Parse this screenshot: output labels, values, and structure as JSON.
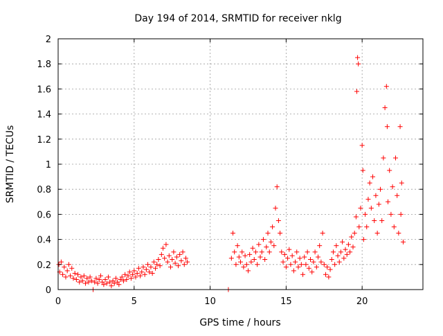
{
  "chart_data": {
    "type": "scatter",
    "title": "Day 194 of 2014, SRMTID for receiver nklg",
    "xlabel": "GPS time / hours",
    "ylabel": "SRMTID / TECUs",
    "xlim": [
      0,
      24
    ],
    "ylim": [
      0,
      2
    ],
    "xticks": [
      0,
      5,
      10,
      15,
      20
    ],
    "yticks": [
      0,
      0.2,
      0.4,
      0.6,
      0.8,
      1,
      1.2,
      1.4,
      1.6,
      1.8,
      2
    ],
    "grid": true,
    "marker": "+",
    "color": "#ff0000",
    "series": [
      {
        "name": "SRMTID",
        "points": [
          [
            0.05,
            0.2
          ],
          [
            0.1,
            0.14
          ],
          [
            0.2,
            0.22
          ],
          [
            0.3,
            0.12
          ],
          [
            0.4,
            0.18
          ],
          [
            0.5,
            0.1
          ],
          [
            0.6,
            0.15
          ],
          [
            0.7,
            0.2
          ],
          [
            0.8,
            0.11
          ],
          [
            0.9,
            0.17
          ],
          [
            1.0,
            0.09
          ],
          [
            1.1,
            0.13
          ],
          [
            1.2,
            0.08
          ],
          [
            1.3,
            0.12
          ],
          [
            1.4,
            0.06
          ],
          [
            1.5,
            0.1
          ],
          [
            1.6,
            0.07
          ],
          [
            1.7,
            0.11
          ],
          [
            1.8,
            0.05
          ],
          [
            1.9,
            0.09
          ],
          [
            2.0,
            0.06
          ],
          [
            2.1,
            0.1
          ],
          [
            2.2,
            0.07
          ],
          [
            2.3,
            0.0
          ],
          [
            2.4,
            0.06
          ],
          [
            2.5,
            0.09
          ],
          [
            2.6,
            0.05
          ],
          [
            2.7,
            0.08
          ],
          [
            2.8,
            0.11
          ],
          [
            2.9,
            0.06
          ],
          [
            3.0,
            0.04
          ],
          [
            3.1,
            0.08
          ],
          [
            3.2,
            0.05
          ],
          [
            3.3,
            0.1
          ],
          [
            3.4,
            0.06
          ],
          [
            3.5,
            0.03
          ],
          [
            3.6,
            0.07
          ],
          [
            3.7,
            0.05
          ],
          [
            3.8,
            0.09
          ],
          [
            3.9,
            0.06
          ],
          [
            4.0,
            0.04
          ],
          [
            4.1,
            0.08
          ],
          [
            4.2,
            0.1
          ],
          [
            4.3,
            0.07
          ],
          [
            4.4,
            0.12
          ],
          [
            4.5,
            0.08
          ],
          [
            4.6,
            0.11
          ],
          [
            4.7,
            0.14
          ],
          [
            4.8,
            0.09
          ],
          [
            4.9,
            0.12
          ],
          [
            5.0,
            0.15
          ],
          [
            5.1,
            0.1
          ],
          [
            5.2,
            0.13
          ],
          [
            5.3,
            0.17
          ],
          [
            5.4,
            0.11
          ],
          [
            5.5,
            0.14
          ],
          [
            5.6,
            0.18
          ],
          [
            5.7,
            0.12
          ],
          [
            5.8,
            0.16
          ],
          [
            5.9,
            0.2
          ],
          [
            6.0,
            0.14
          ],
          [
            6.1,
            0.18
          ],
          [
            6.2,
            0.13
          ],
          [
            6.3,
            0.22
          ],
          [
            6.4,
            0.17
          ],
          [
            6.5,
            0.2
          ],
          [
            6.6,
            0.24
          ],
          [
            6.7,
            0.19
          ],
          [
            6.8,
            0.28
          ],
          [
            6.9,
            0.33
          ],
          [
            7.0,
            0.25
          ],
          [
            7.1,
            0.36
          ],
          [
            7.2,
            0.22
          ],
          [
            7.3,
            0.27
          ],
          [
            7.4,
            0.18
          ],
          [
            7.5,
            0.24
          ],
          [
            7.6,
            0.3
          ],
          [
            7.7,
            0.21
          ],
          [
            7.8,
            0.26
          ],
          [
            7.9,
            0.19
          ],
          [
            8.0,
            0.28
          ],
          [
            8.1,
            0.23
          ],
          [
            8.2,
            0.3
          ],
          [
            8.3,
            0.2
          ],
          [
            8.4,
            0.25
          ],
          [
            8.5,
            0.22
          ],
          [
            11.2,
            0.0
          ],
          [
            11.4,
            0.25
          ],
          [
            11.5,
            0.45
          ],
          [
            11.6,
            0.3
          ],
          [
            11.7,
            0.2
          ],
          [
            11.8,
            0.35
          ],
          [
            11.9,
            0.26
          ],
          [
            12.0,
            0.22
          ],
          [
            12.1,
            0.3
          ],
          [
            12.2,
            0.18
          ],
          [
            12.3,
            0.27
          ],
          [
            12.4,
            0.2
          ],
          [
            12.5,
            0.15
          ],
          [
            12.6,
            0.28
          ],
          [
            12.7,
            0.22
          ],
          [
            12.8,
            0.33
          ],
          [
            12.9,
            0.24
          ],
          [
            13.0,
            0.3
          ],
          [
            13.1,
            0.2
          ],
          [
            13.2,
            0.36
          ],
          [
            13.3,
            0.26
          ],
          [
            13.4,
            0.3
          ],
          [
            13.5,
            0.4
          ],
          [
            13.6,
            0.24
          ],
          [
            13.7,
            0.34
          ],
          [
            13.8,
            0.45
          ],
          [
            13.9,
            0.3
          ],
          [
            14.0,
            0.38
          ],
          [
            14.1,
            0.5
          ],
          [
            14.2,
            0.35
          ],
          [
            14.3,
            0.65
          ],
          [
            14.4,
            0.82
          ],
          [
            14.5,
            0.55
          ],
          [
            14.6,
            0.45
          ],
          [
            14.7,
            0.3
          ],
          [
            14.8,
            0.22
          ],
          [
            14.9,
            0.28
          ],
          [
            15.0,
            0.18
          ],
          [
            15.1,
            0.25
          ],
          [
            15.2,
            0.32
          ],
          [
            15.3,
            0.2
          ],
          [
            15.4,
            0.27
          ],
          [
            15.5,
            0.15
          ],
          [
            15.6,
            0.22
          ],
          [
            15.7,
            0.3
          ],
          [
            15.8,
            0.18
          ],
          [
            15.9,
            0.25
          ],
          [
            16.0,
            0.2
          ],
          [
            16.1,
            0.12
          ],
          [
            16.2,
            0.26
          ],
          [
            16.3,
            0.2
          ],
          [
            16.4,
            0.3
          ],
          [
            16.5,
            0.17
          ],
          [
            16.6,
            0.24
          ],
          [
            16.7,
            0.14
          ],
          [
            16.8,
            0.22
          ],
          [
            16.9,
            0.3
          ],
          [
            17.0,
            0.18
          ],
          [
            17.1,
            0.26
          ],
          [
            17.2,
            0.35
          ],
          [
            17.3,
            0.22
          ],
          [
            17.4,
            0.45
          ],
          [
            17.5,
            0.2
          ],
          [
            17.6,
            0.12
          ],
          [
            17.7,
            0.18
          ],
          [
            17.8,
            0.1
          ],
          [
            17.9,
            0.16
          ],
          [
            18.0,
            0.24
          ],
          [
            18.1,
            0.3
          ],
          [
            18.2,
            0.2
          ],
          [
            18.3,
            0.35
          ],
          [
            18.4,
            0.27
          ],
          [
            18.5,
            0.22
          ],
          [
            18.6,
            0.3
          ],
          [
            18.7,
            0.38
          ],
          [
            18.8,
            0.25
          ],
          [
            18.9,
            0.32
          ],
          [
            19.0,
            0.28
          ],
          [
            19.1,
            0.36
          ],
          [
            19.2,
            0.3
          ],
          [
            19.3,
            0.42
          ],
          [
            19.4,
            0.34
          ],
          [
            19.5,
            0.45
          ],
          [
            19.6,
            0.58
          ],
          [
            19.65,
            1.58
          ],
          [
            19.7,
            1.85
          ],
          [
            19.75,
            1.8
          ],
          [
            19.8,
            0.5
          ],
          [
            19.9,
            0.65
          ],
          [
            20.0,
            1.15
          ],
          [
            20.05,
            0.95
          ],
          [
            20.1,
            0.4
          ],
          [
            20.2,
            0.6
          ],
          [
            20.3,
            0.5
          ],
          [
            20.4,
            0.72
          ],
          [
            20.5,
            0.85
          ],
          [
            20.6,
            0.65
          ],
          [
            20.7,
            0.9
          ],
          [
            20.8,
            0.55
          ],
          [
            20.9,
            0.75
          ],
          [
            21.0,
            0.45
          ],
          [
            21.1,
            0.68
          ],
          [
            21.2,
            0.8
          ],
          [
            21.3,
            0.55
          ],
          [
            21.4,
            1.05
          ],
          [
            21.5,
            1.45
          ],
          [
            21.6,
            1.62
          ],
          [
            21.65,
            1.3
          ],
          [
            21.7,
            0.7
          ],
          [
            21.8,
            0.95
          ],
          [
            21.9,
            0.6
          ],
          [
            22.0,
            0.82
          ],
          [
            22.1,
            0.5
          ],
          [
            22.2,
            1.05
          ],
          [
            22.3,
            0.75
          ],
          [
            22.4,
            0.45
          ],
          [
            22.5,
            1.3
          ],
          [
            22.55,
            0.6
          ],
          [
            22.6,
            0.85
          ],
          [
            22.7,
            0.38
          ]
        ]
      }
    ]
  }
}
